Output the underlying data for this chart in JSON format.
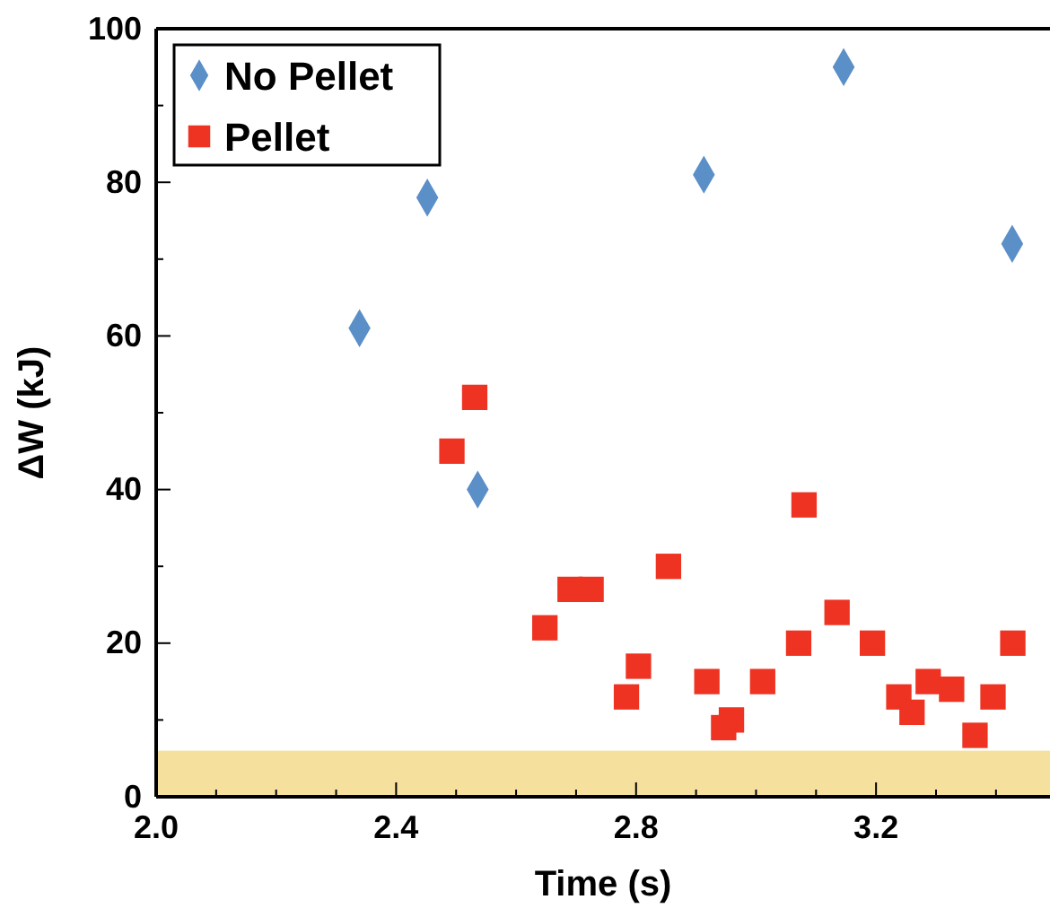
{
  "chart_data": {
    "type": "scatter",
    "xlabel": "Time (s)",
    "ylabel": "ΔW (kJ)",
    "xlim": [
      2.0,
      3.49
    ],
    "ylim": [
      0,
      100
    ],
    "xticks": [
      {
        "value": 2.0,
        "label": "2.0"
      },
      {
        "value": 2.1,
        "label": null
      },
      {
        "value": 2.2,
        "label": null
      },
      {
        "value": 2.3,
        "label": null
      },
      {
        "value": 2.4,
        "label": "2.4"
      },
      {
        "value": 2.5,
        "label": null
      },
      {
        "value": 2.6,
        "label": null
      },
      {
        "value": 2.7,
        "label": null
      },
      {
        "value": 2.8,
        "label": "2.8"
      },
      {
        "value": 2.9,
        "label": null
      },
      {
        "value": 3.0,
        "label": null
      },
      {
        "value": 3.1,
        "label": null
      },
      {
        "value": 3.2,
        "label": "3.2"
      },
      {
        "value": 3.3,
        "label": null
      },
      {
        "value": 3.4,
        "label": null
      }
    ],
    "yticks": [
      0,
      {
        "value": 10,
        "label": null
      },
      20,
      {
        "value": 30,
        "label": null
      },
      40,
      {
        "value": 50,
        "label": null
      },
      60,
      {
        "value": 70,
        "label": null
      },
      80,
      {
        "value": 90,
        "label": null
      },
      100
    ],
    "legend": "top left",
    "bands": [
      {
        "axis": "y",
        "from": 0,
        "to": 6,
        "color": "#f5e09e"
      }
    ],
    "series": [
      {
        "name": "No Pellet",
        "color": "#5b8fc7",
        "marker": "diamond",
        "x": [
          2.339,
          2.452,
          2.536,
          2.913,
          3.146,
          3.427
        ],
        "values": [
          61,
          78,
          40,
          81,
          95,
          72
        ]
      },
      {
        "name": "Pellet",
        "color": "#ee3322",
        "marker": "square",
        "x": [
          2.493,
          2.531,
          3.08,
          2.648,
          2.69,
          2.725,
          2.854,
          2.804,
          2.784,
          2.918,
          2.959,
          2.946,
          3.011,
          3.071,
          3.135,
          3.194,
          3.238,
          3.26,
          3.287,
          3.326,
          3.365,
          3.395,
          3.428
        ],
        "values": [
          45,
          52,
          38,
          22,
          27,
          27,
          30,
          17,
          13,
          15,
          10,
          9,
          15,
          20,
          24,
          20,
          13,
          11,
          15,
          14,
          8,
          13,
          20
        ]
      }
    ]
  }
}
